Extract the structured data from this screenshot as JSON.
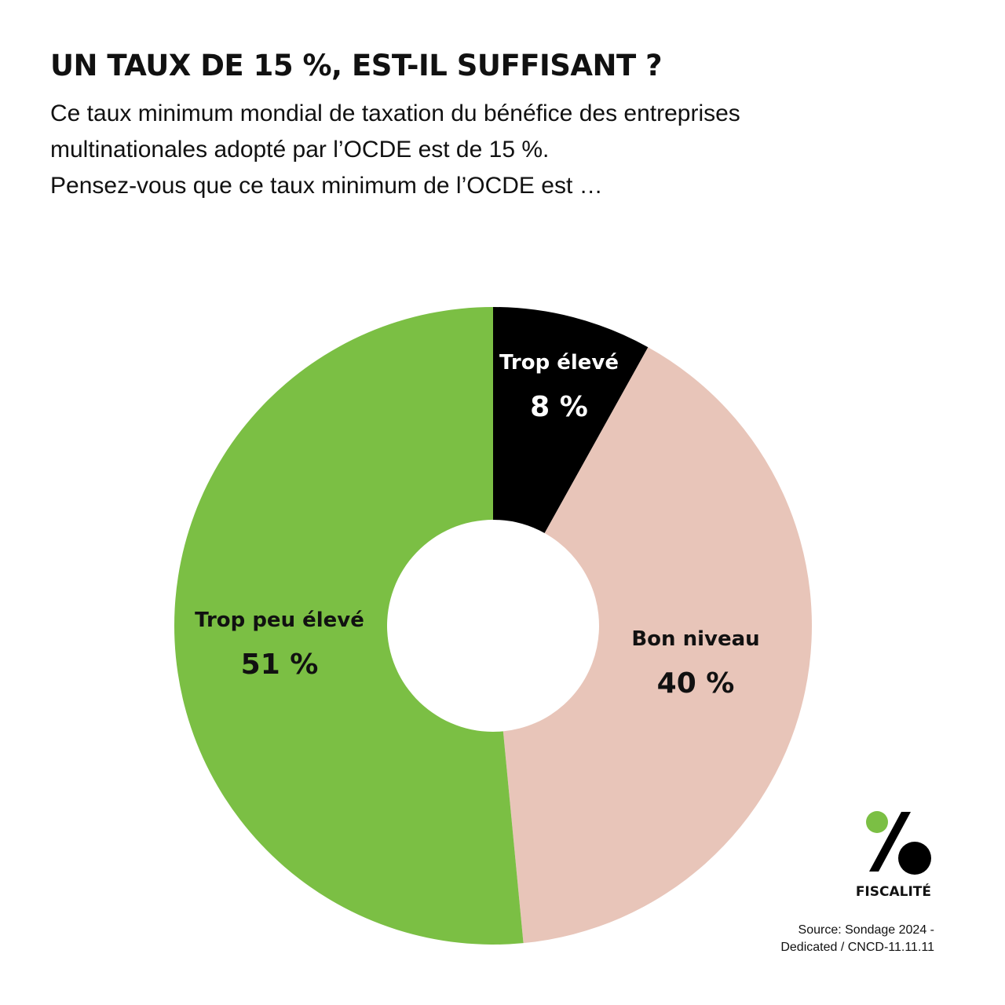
{
  "header": {
    "title": "UN TAUX DE 15 %, EST-IL SUFFISANT ?",
    "subtitle_lines": [
      "Ce taux minimum mondial de taxation du bénéfice des entreprises",
      "multinationales adopté par l’OCDE est de 15 %.",
      "Pensez-vous que ce taux minimum de l’OCDE est …"
    ]
  },
  "chart_data": {
    "type": "pie",
    "donut": true,
    "start": "top",
    "direction": "clockwise",
    "slices": [
      {
        "label": "Trop élevé",
        "value": 8,
        "value_label": "8 %",
        "color": "#000000",
        "text_color": "#ffffff"
      },
      {
        "label": "Bon niveau",
        "value": 40,
        "value_label": "40 %",
        "color": "#e8c5b9",
        "text_color": "#111111"
      },
      {
        "label": "Trop peu élevé",
        "value": 51,
        "value_label": "51 %",
        "color": "#7bbf44",
        "text_color": "#111111"
      }
    ]
  },
  "logo": {
    "text": "FISCALITÉ",
    "dot_color": "#7bbf44"
  },
  "source": {
    "lines": [
      "Source: Sondage 2024 -",
      "Dedicated /  CNCD-11.11.11"
    ]
  }
}
